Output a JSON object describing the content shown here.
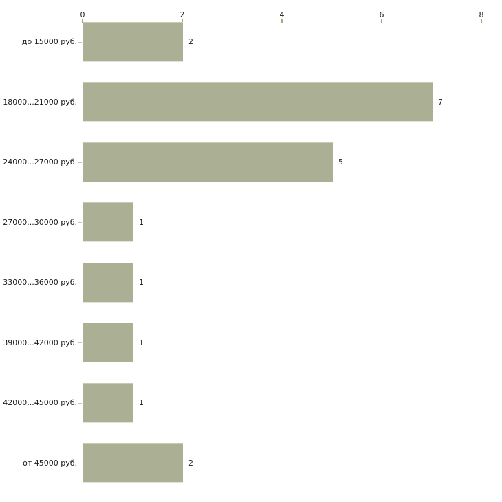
{
  "chart_data": {
    "type": "bar",
    "orientation": "horizontal",
    "title": "",
    "xlabel": "",
    "ylabel": "",
    "categories": [
      "до 15000 руб.",
      "18000...21000 руб.",
      "24000...27000 руб.",
      "27000...30000 руб.",
      "33000...36000 руб.",
      "39000...42000 руб.",
      "42000...45000 руб.",
      "от 45000 руб."
    ],
    "values": [
      2,
      7,
      5,
      1,
      1,
      1,
      1,
      2
    ],
    "x_ticks": [
      0,
      2,
      4,
      6,
      8
    ],
    "xlim": [
      0,
      8
    ],
    "grid": false,
    "legend": null,
    "axis_position": "top",
    "colors": {
      "bar_fill": "#abb095",
      "bar_top_highlight": "#c7cbb3",
      "axis_line": "#c9c9c9",
      "tick_mark": "#a6aa7b",
      "text": "#1c1c1c",
      "background": "#ffffff"
    }
  }
}
